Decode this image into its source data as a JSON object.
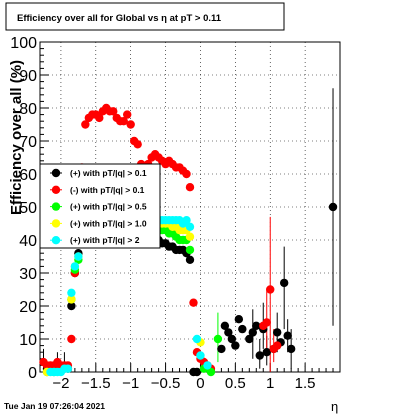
{
  "chart_data": {
    "type": "scatter",
    "title": "Efficiency over all for Global vs   η at pT > 0.11",
    "xlabel": "η",
    "ylabel": "Efficiency over all (%)",
    "xlim": [
      -2.3,
      2.0
    ],
    "ylim": [
      0,
      100
    ],
    "x_ticks": [
      -2,
      -1.5,
      -1,
      -0.5,
      0,
      0.5,
      1,
      1.5
    ],
    "x_tick_labels": [
      "−2",
      "−1.5",
      "−1",
      "−0.5",
      "0",
      "0.5",
      "1",
      "1.5"
    ],
    "y_ticks": [
      0,
      10,
      20,
      30,
      40,
      50,
      60,
      70,
      80,
      90,
      100
    ],
    "y_tick_labels": [
      "0",
      "10",
      "20",
      "30",
      "40",
      "50",
      "60",
      "70",
      "80",
      "90",
      "100"
    ],
    "grid": true,
    "timestamp": "Tue Jan 19 07:26:04 2021",
    "legend": {
      "placement": "center-left",
      "entries": [
        {
          "label": "(+) with pT/|q| > 0.1",
          "color": "#000000"
        },
        {
          "label": "(-) with pT/|q| > 0.1",
          "color": "#ff0000"
        },
        {
          "label": "(+) with pT/|q| > 0.5",
          "color": "#00ff00"
        },
        {
          "label": "(+) with pT/|q| > 1.0",
          "color": "#ffff00"
        },
        {
          "label": "(+) with pT/|q| > 2",
          "color": "#00ffff"
        }
      ]
    },
    "series": [
      {
        "name": "(+) with pT/|q| > 0.1",
        "color": "#000000",
        "points": [
          [
            -2.2,
            1
          ],
          [
            -2.15,
            1
          ],
          [
            -2.1,
            1
          ],
          [
            -2.05,
            1
          ],
          [
            -2.0,
            1
          ],
          [
            -1.95,
            1
          ],
          [
            -1.9,
            1
          ],
          [
            -1.85,
            20
          ],
          [
            -1.8,
            30
          ],
          [
            -1.75,
            36
          ],
          [
            -1.7,
            40
          ],
          [
            -1.65,
            41
          ],
          [
            -1.6,
            42
          ],
          [
            -1.55,
            42
          ],
          [
            -1.5,
            42
          ],
          [
            -1.45,
            43
          ],
          [
            -1.4,
            43
          ],
          [
            -1.35,
            42
          ],
          [
            -1.3,
            42
          ],
          [
            -1.25,
            42
          ],
          [
            -1.2,
            41
          ],
          [
            -1.15,
            41
          ],
          [
            -1.1,
            41
          ],
          [
            -1.05,
            41
          ],
          [
            -1.0,
            41
          ],
          [
            -0.95,
            41
          ],
          [
            -0.9,
            41
          ],
          [
            -0.85,
            41
          ],
          [
            -0.8,
            40
          ],
          [
            -0.75,
            40
          ],
          [
            -0.7,
            40
          ],
          [
            -0.65,
            40
          ],
          [
            -0.6,
            40
          ],
          [
            -0.55,
            39
          ],
          [
            -0.5,
            39
          ],
          [
            -0.45,
            38
          ],
          [
            -0.4,
            38
          ],
          [
            -0.35,
            37
          ],
          [
            -0.3,
            37
          ],
          [
            -0.25,
            37
          ],
          [
            -0.2,
            36
          ],
          [
            -0.15,
            34
          ],
          [
            -0.1,
            0
          ],
          [
            -0.05,
            0
          ],
          [
            0.3,
            7
          ],
          [
            0.35,
            14
          ],
          [
            0.4,
            12
          ],
          [
            0.45,
            10
          ],
          [
            0.5,
            8
          ],
          [
            0.55,
            16
          ],
          [
            0.6,
            13
          ],
          [
            0.7,
            10
          ],
          [
            0.75,
            12
          ],
          [
            0.8,
            14
          ],
          [
            0.85,
            5
          ],
          [
            0.9,
            13
          ],
          [
            0.95,
            6
          ],
          [
            1.05,
            7
          ],
          [
            1.1,
            12
          ],
          [
            1.15,
            9
          ],
          [
            1.2,
            27
          ],
          [
            1.25,
            11
          ],
          [
            1.3,
            7
          ],
          [
            1.9,
            50
          ]
        ]
      },
      {
        "name": "(-) with pT/|q| > 0.1",
        "color": "#ff0000",
        "points": [
          [
            -2.25,
            3
          ],
          [
            -2.2,
            2
          ],
          [
            -2.15,
            2
          ],
          [
            -2.1,
            2
          ],
          [
            -2.05,
            3
          ],
          [
            -2.0,
            2
          ],
          [
            -1.95,
            2
          ],
          [
            -1.9,
            2
          ],
          [
            -1.85,
            10
          ],
          [
            -1.8,
            30
          ],
          [
            -1.75,
            50
          ],
          [
            -1.7,
            62
          ],
          [
            -1.65,
            75
          ],
          [
            -1.6,
            77
          ],
          [
            -1.55,
            78
          ],
          [
            -1.5,
            78
          ],
          [
            -1.45,
            77
          ],
          [
            -1.4,
            79
          ],
          [
            -1.35,
            80
          ],
          [
            -1.3,
            79
          ],
          [
            -1.25,
            79
          ],
          [
            -1.2,
            77
          ],
          [
            -1.15,
            76
          ],
          [
            -1.1,
            76
          ],
          [
            -1.05,
            78
          ],
          [
            -1.0,
            75
          ],
          [
            -0.95,
            70
          ],
          [
            -0.9,
            69
          ],
          [
            -0.85,
            63
          ],
          [
            -0.8,
            60
          ],
          [
            -0.75,
            63
          ],
          [
            -0.7,
            65
          ],
          [
            -0.65,
            66
          ],
          [
            -0.6,
            65
          ],
          [
            -0.55,
            64
          ],
          [
            -0.5,
            63
          ],
          [
            -0.45,
            64
          ],
          [
            -0.4,
            63
          ],
          [
            -0.35,
            62
          ],
          [
            -0.3,
            62
          ],
          [
            -0.25,
            61
          ],
          [
            -0.2,
            60
          ],
          [
            -0.15,
            56
          ],
          [
            -0.1,
            21
          ],
          [
            -0.05,
            6
          ],
          [
            0.0,
            4
          ],
          [
            0.05,
            3
          ],
          [
            0.1,
            2
          ],
          [
            0.15,
            1
          ],
          [
            0.9,
            14
          ],
          [
            0.95,
            15
          ],
          [
            1.0,
            25
          ],
          [
            1.05,
            7
          ],
          [
            1.1,
            8
          ]
        ]
      },
      {
        "name": "(+) with pT/|q| > 0.5",
        "color": "#00ff00",
        "points": [
          [
            -2.2,
            0
          ],
          [
            -2.1,
            0
          ],
          [
            -1.85,
            22
          ],
          [
            -1.8,
            31
          ],
          [
            -1.75,
            34
          ],
          [
            -1.7,
            40
          ],
          [
            -1.65,
            43
          ],
          [
            -1.6,
            44
          ],
          [
            -1.55,
            44
          ],
          [
            -1.5,
            45
          ],
          [
            -1.45,
            44
          ],
          [
            -1.4,
            44
          ],
          [
            -1.35,
            44
          ],
          [
            -1.3,
            44
          ],
          [
            -1.25,
            43
          ],
          [
            -1.2,
            43
          ],
          [
            -1.15,
            43
          ],
          [
            -1.1,
            42
          ],
          [
            -1.05,
            42
          ],
          [
            -1.0,
            42
          ],
          [
            -0.95,
            43
          ],
          [
            -0.9,
            43
          ],
          [
            -0.85,
            43
          ],
          [
            -0.8,
            43
          ],
          [
            -0.75,
            43
          ],
          [
            -0.7,
            43
          ],
          [
            -0.65,
            43
          ],
          [
            -0.6,
            43
          ],
          [
            -0.55,
            43
          ],
          [
            -0.5,
            43
          ],
          [
            -0.45,
            42
          ],
          [
            -0.4,
            42
          ],
          [
            -0.35,
            41
          ],
          [
            -0.3,
            40
          ],
          [
            -0.25,
            40
          ],
          [
            -0.2,
            40
          ],
          [
            -0.15,
            37
          ],
          [
            0.05,
            1
          ],
          [
            0.15,
            0
          ],
          [
            0.25,
            10
          ]
        ]
      },
      {
        "name": "(+) with pT/|q| > 1.0",
        "color": "#ffff00",
        "points": [
          [
            -2.2,
            0
          ],
          [
            -1.85,
            22
          ],
          [
            -1.8,
            32
          ],
          [
            -1.75,
            35
          ],
          [
            -1.7,
            40
          ],
          [
            -1.65,
            44
          ],
          [
            -1.6,
            45
          ],
          [
            -1.55,
            45
          ],
          [
            -1.5,
            45
          ],
          [
            -1.45,
            45
          ],
          [
            -1.4,
            45
          ],
          [
            -1.35,
            45
          ],
          [
            -1.3,
            44
          ],
          [
            -1.25,
            44
          ],
          [
            -1.2,
            44
          ],
          [
            -1.15,
            44
          ],
          [
            -1.1,
            44
          ],
          [
            -1.05,
            44
          ],
          [
            -1.0,
            44
          ],
          [
            -0.95,
            44
          ],
          [
            -0.9,
            45
          ],
          [
            -0.85,
            45
          ],
          [
            -0.8,
            45
          ],
          [
            -0.75,
            45
          ],
          [
            -0.7,
            45
          ],
          [
            -0.65,
            45
          ],
          [
            -0.6,
            45
          ],
          [
            -0.55,
            45
          ],
          [
            -0.5,
            45
          ],
          [
            -0.45,
            45
          ],
          [
            -0.4,
            44
          ],
          [
            -0.35,
            44
          ],
          [
            -0.3,
            43
          ],
          [
            -0.25,
            43
          ],
          [
            -0.2,
            43
          ],
          [
            -0.15,
            41
          ],
          [
            0.0,
            9
          ]
        ]
      },
      {
        "name": "(+) with pT/|q| > 2",
        "color": "#00ffff",
        "points": [
          [
            -2.15,
            0
          ],
          [
            -2.1,
            0
          ],
          [
            -2.05,
            0
          ],
          [
            -2.0,
            0
          ],
          [
            -1.95,
            1
          ],
          [
            -1.9,
            1
          ],
          [
            -1.85,
            24
          ],
          [
            -1.8,
            32
          ],
          [
            -1.75,
            35
          ],
          [
            -1.7,
            42
          ],
          [
            -1.65,
            45
          ],
          [
            -1.6,
            46
          ],
          [
            -1.55,
            46
          ],
          [
            -1.5,
            46
          ],
          [
            -1.45,
            46
          ],
          [
            -1.4,
            46
          ],
          [
            -1.35,
            46
          ],
          [
            -1.3,
            46
          ],
          [
            -1.25,
            46
          ],
          [
            -1.2,
            46
          ],
          [
            -1.15,
            46
          ],
          [
            -1.1,
            46
          ],
          [
            -1.05,
            46
          ],
          [
            -1.0,
            46
          ],
          [
            -0.95,
            46
          ],
          [
            -0.9,
            46
          ],
          [
            -0.85,
            46
          ],
          [
            -0.8,
            46
          ],
          [
            -0.75,
            46
          ],
          [
            -0.7,
            46
          ],
          [
            -0.65,
            46
          ],
          [
            -0.6,
            46
          ],
          [
            -0.55,
            46
          ],
          [
            -0.5,
            46
          ],
          [
            -0.45,
            46
          ],
          [
            -0.4,
            46
          ],
          [
            -0.35,
            46
          ],
          [
            -0.3,
            46
          ],
          [
            -0.25,
            45
          ],
          [
            -0.2,
            46
          ],
          [
            -0.15,
            44
          ],
          [
            -0.05,
            10
          ],
          [
            0.0,
            5
          ],
          [
            0.1,
            2
          ]
        ]
      }
    ],
    "error_bars": [
      {
        "x": 1.9,
        "lo": 14,
        "hi": 86,
        "color": "#000000"
      },
      {
        "x": 1.2,
        "lo": 13,
        "hi": 38,
        "color": "#000000"
      },
      {
        "x": 1.3,
        "lo": 1,
        "hi": 13,
        "color": "#000000"
      },
      {
        "x": 1.25,
        "lo": 6,
        "hi": 16,
        "color": "#000000"
      },
      {
        "x": 1.1,
        "lo": 6,
        "hi": 18,
        "color": "#000000"
      },
      {
        "x": 0.9,
        "lo": 7,
        "hi": 21,
        "color": "#000000"
      },
      {
        "x": 0.85,
        "lo": 1,
        "hi": 10,
        "color": "#000000"
      },
      {
        "x": 0.95,
        "lo": 2,
        "hi": 11,
        "color": "#000000"
      },
      {
        "x": 0.75,
        "lo": 4,
        "hi": 19,
        "color": "#000000"
      },
      {
        "x": 1.0,
        "lo": 0,
        "hi": 47,
        "color": "#ff0000"
      },
      {
        "x": 0.95,
        "lo": 6,
        "hi": 25,
        "color": "#ff0000"
      },
      {
        "x": 1.05,
        "lo": 3,
        "hi": 13,
        "color": "#ff0000"
      },
      {
        "x": -2.25,
        "lo": 0,
        "hi": 7,
        "color": "#000000"
      },
      {
        "x": -2.05,
        "lo": 0,
        "hi": 6,
        "color": "#000000"
      },
      {
        "x": -1.95,
        "lo": 0,
        "hi": 6,
        "color": "#000000"
      },
      {
        "x": 0.25,
        "lo": 3,
        "hi": 18,
        "color": "#00ff00"
      }
    ]
  }
}
